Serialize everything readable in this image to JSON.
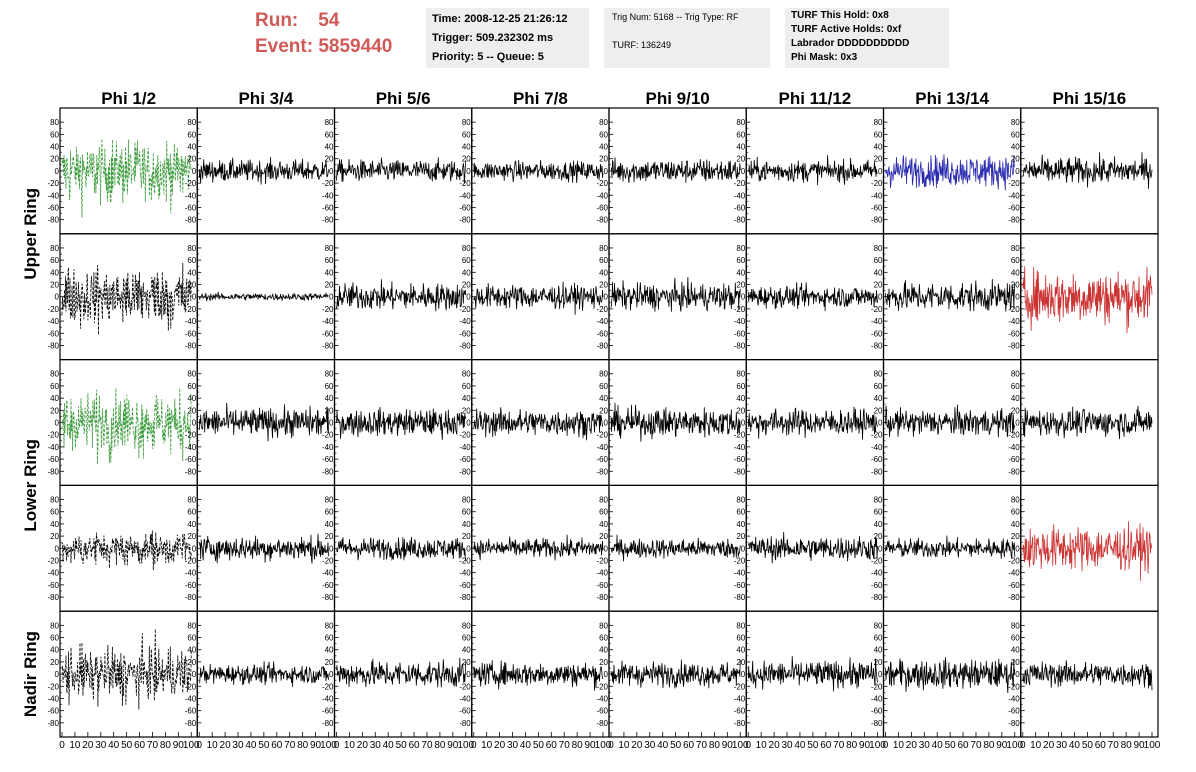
{
  "header": {
    "run_label": "Run:",
    "run_value": "54",
    "event_label": "Event:",
    "event_value": "5859440"
  },
  "info_box_1": {
    "time": "Time: 2008-12-25 21:26:12",
    "trigger": "Trigger: 509.232302 ms",
    "priority": "Priority: 5 -- Queue: 5"
  },
  "info_box_2": {
    "trig": "Trig Num: 5168 -- Trig Type: RF",
    "turf": "TURF: 136249"
  },
  "info_box_3": {
    "hold": "TURF This Hold: 0x8",
    "active": "TURF Active Holds: 0xf",
    "labrador": "Labrador DDDDDDDDDD",
    "phimask": "Phi Mask: 0x3"
  },
  "colors": {
    "green": "#3a9a3a",
    "blue": "#2b2bb0",
    "red": "#cc3333",
    "black": "#000000"
  },
  "chart_data": {
    "type": "line",
    "columns": [
      "Phi 1/2",
      "Phi 3/4",
      "Phi 5/6",
      "Phi 7/8",
      "Phi 9/10",
      "Phi 11/12",
      "Phi 13/14",
      "Phi 15/16"
    ],
    "ring_labels": [
      "Upper Ring",
      "Lower Ring",
      "Nadir Ring"
    ],
    "y_ticks": [
      80,
      60,
      40,
      20,
      0,
      -20,
      -40,
      -60,
      -80
    ],
    "y_tick_labels": [
      "80",
      "60",
      "40",
      "20",
      "0",
      "-20",
      "-40",
      "-60",
      "-80"
    ],
    "x_tick_labels": [
      "0",
      "10",
      "20",
      "30",
      "40",
      "50",
      "60",
      "70",
      "80",
      "90",
      "100"
    ],
    "ylim": [
      -95,
      95
    ],
    "xlim": [
      0,
      100
    ],
    "panels": [
      [
        {
          "color": "green",
          "dashed": true,
          "amp": 30
        },
        {
          "color": "black",
          "dashed": false,
          "amp": 9
        },
        {
          "color": "black",
          "dashed": false,
          "amp": 9
        },
        {
          "color": "black",
          "dashed": false,
          "amp": 8
        },
        {
          "color": "black",
          "dashed": false,
          "amp": 10
        },
        {
          "color": "black",
          "dashed": false,
          "amp": 9
        },
        {
          "color": "blue",
          "dashed": false,
          "amp": 13
        },
        {
          "color": "black",
          "dashed": false,
          "amp": 11
        }
      ],
      [
        {
          "color": "black",
          "dashed": true,
          "amp": 30
        },
        {
          "color": "black",
          "dashed": false,
          "amp": 3
        },
        {
          "color": "black",
          "dashed": false,
          "amp": 11
        },
        {
          "color": "black",
          "dashed": false,
          "amp": 10
        },
        {
          "color": "black",
          "dashed": false,
          "amp": 11
        },
        {
          "color": "black",
          "dashed": false,
          "amp": 9
        },
        {
          "color": "black",
          "dashed": false,
          "amp": 12
        },
        {
          "color": "red",
          "dashed": false,
          "amp": 22
        }
      ],
      [
        {
          "color": "green",
          "dashed": true,
          "amp": 30
        },
        {
          "color": "black",
          "dashed": false,
          "amp": 12
        },
        {
          "color": "black",
          "dashed": false,
          "amp": 11
        },
        {
          "color": "black",
          "dashed": false,
          "amp": 11
        },
        {
          "color": "black",
          "dashed": false,
          "amp": 12
        },
        {
          "color": "black",
          "dashed": false,
          "amp": 11
        },
        {
          "color": "black",
          "dashed": false,
          "amp": 11
        },
        {
          "color": "black",
          "dashed": false,
          "amp": 11
        }
      ],
      [
        {
          "color": "black",
          "dashed": true,
          "amp": 16
        },
        {
          "color": "black",
          "dashed": false,
          "amp": 10
        },
        {
          "color": "black",
          "dashed": false,
          "amp": 9
        },
        {
          "color": "black",
          "dashed": false,
          "amp": 8
        },
        {
          "color": "black",
          "dashed": false,
          "amp": 8
        },
        {
          "color": "black",
          "dashed": false,
          "amp": 10
        },
        {
          "color": "black",
          "dashed": false,
          "amp": 8
        },
        {
          "color": "red",
          "dashed": false,
          "amp": 18
        }
      ],
      [
        {
          "color": "black",
          "dashed": true,
          "amp": 26
        },
        {
          "color": "black",
          "dashed": false,
          "amp": 8
        },
        {
          "color": "black",
          "dashed": false,
          "amp": 11
        },
        {
          "color": "black",
          "dashed": false,
          "amp": 10
        },
        {
          "color": "black",
          "dashed": false,
          "amp": 10
        },
        {
          "color": "black",
          "dashed": false,
          "amp": 11
        },
        {
          "color": "black",
          "dashed": false,
          "amp": 12
        },
        {
          "color": "black",
          "dashed": false,
          "amp": 10
        }
      ]
    ]
  }
}
